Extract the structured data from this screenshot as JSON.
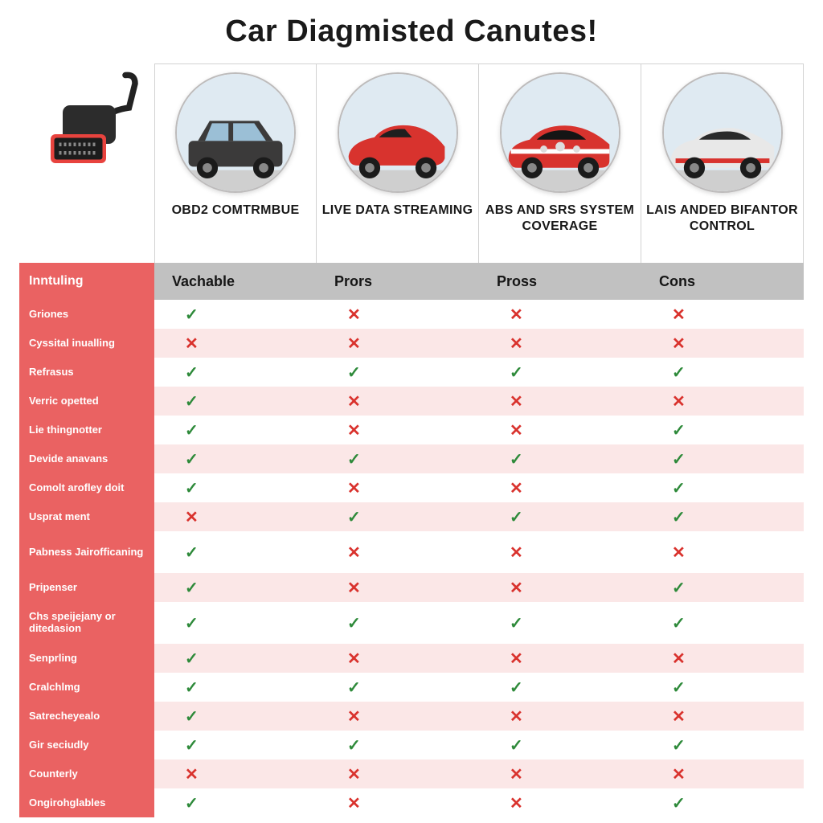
{
  "title": "Car Diagmisted Canutes!",
  "columns": [
    {
      "title": "OBD2 COMTRMBUE",
      "sub": "Vachable",
      "car_body": "#3b3a3a",
      "car_accent": "#4a4a4a",
      "kind": "suv"
    },
    {
      "title": "LIVE DATA STREAMING",
      "sub": "Prors",
      "car_body": "#d8332e",
      "car_accent": "#e04640",
      "kind": "coupe"
    },
    {
      "title": "ABS AND SRS SYSTEM COVERAGE",
      "sub": "Pross",
      "car_body": "#d8332e",
      "car_accent": "#ffffff",
      "kind": "sport"
    },
    {
      "title": "LAIS ANDED BIFANTOR CONTROL",
      "sub": "Cons",
      "car_body": "#e8e8e8",
      "car_accent": "#d8332e",
      "kind": "sedan"
    }
  ],
  "row_header_label": "Inntuling",
  "rows": [
    {
      "label": "Griones",
      "v": [
        "✓",
        "✕",
        "✕",
        "✕"
      ],
      "band": false
    },
    {
      "label": "Cyssital inualling",
      "v": [
        "✕",
        "✕",
        "✕",
        "✕"
      ],
      "band": true
    },
    {
      "label": "Refrasus",
      "v": [
        "✓",
        "✓",
        "✓",
        "✓"
      ],
      "band": false
    },
    {
      "label": "Verric opetted",
      "v": [
        "✓",
        "✕",
        "✕",
        "✕"
      ],
      "band": true
    },
    {
      "label": "Lie thingnotter",
      "v": [
        "✓",
        "✕",
        "✕",
        "✓"
      ],
      "band": false
    },
    {
      "label": "Devide anavans",
      "v": [
        "✓",
        "✓",
        "✓",
        "✓"
      ],
      "band": true
    },
    {
      "label": "Comolt arofley doit",
      "v": [
        "✓",
        "✕",
        "✕",
        "✓"
      ],
      "band": false
    },
    {
      "label": "Usprat ment",
      "v": [
        "✕",
        "✓",
        "✓",
        "✓"
      ],
      "band": true
    },
    {
      "label": "Pabness Jairofficaning",
      "v": [
        "✓",
        "✕",
        "✕",
        "✕"
      ],
      "band": false,
      "tall": true
    },
    {
      "label": "Pripenser",
      "v": [
        "✓",
        "✕",
        "✕",
        "✓"
      ],
      "band": true
    },
    {
      "label": "Chs speijejany or ditedasion",
      "v": [
        "✓",
        "✓",
        "✓",
        "✓"
      ],
      "band": false,
      "tall": true
    },
    {
      "label": "Senprling",
      "v": [
        "✓",
        "✕",
        "✕",
        "✕"
      ],
      "band": true
    },
    {
      "label": "Cralchlmg",
      "v": [
        "✓",
        "✓",
        "✓",
        "✓"
      ],
      "band": false
    },
    {
      "label": "Satrecheyealo",
      "v": [
        "✓",
        "✕",
        "✕",
        "✕"
      ],
      "band": true
    },
    {
      "label": "Gir seciudly",
      "v": [
        "✓",
        "✓",
        "✓",
        "✓"
      ],
      "band": false
    },
    {
      "label": "Counterly",
      "v": [
        "✕",
        "✕",
        "✕",
        "✕"
      ],
      "band": true
    },
    {
      "label": "Ongirohglables",
      "v": [
        "✓",
        "✕",
        "✕",
        "✓"
      ],
      "band": false
    }
  ],
  "colors": {
    "row_header_bg": "#ea6262",
    "band_bg": "#fbe7e7",
    "sub_header_bg": "#c1c1c1",
    "tick": "#2e8a3a",
    "cross": "#d9322d",
    "card_border": "#d2d2d2",
    "title_color": "#1a1a1a"
  }
}
